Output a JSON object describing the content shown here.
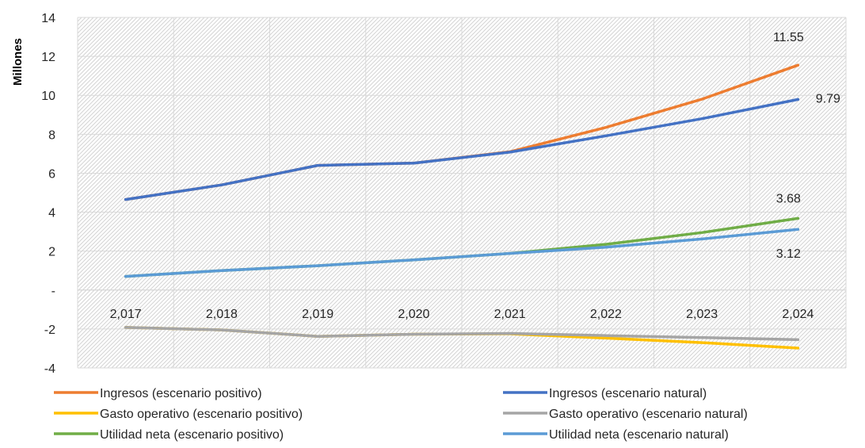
{
  "chart_data": {
    "type": "line",
    "title": "",
    "xlabel": "",
    "ylabel": "Millones",
    "ylim": [
      -4,
      14
    ],
    "yticks": [
      {
        "value": 14,
        "label": "14"
      },
      {
        "value": 12,
        "label": "12"
      },
      {
        "value": 10,
        "label": "10"
      },
      {
        "value": 8,
        "label": "8"
      },
      {
        "value": 6,
        "label": "6"
      },
      {
        "value": 4,
        "label": "4"
      },
      {
        "value": 2,
        "label": "2"
      },
      {
        "value": 0,
        "label": "-"
      },
      {
        "value": -2,
        "label": "-2"
      },
      {
        "value": -4,
        "label": "-4"
      }
    ],
    "categories": [
      "2,017",
      "2,018",
      "2,019",
      "2,020",
      "2,021",
      "2,022",
      "2,023",
      "2,024"
    ],
    "grid": true,
    "legend": "bottom",
    "series": [
      {
        "name": "Ingresos (escenario positivo)",
        "color": "#ED7D31",
        "values": [
          4.65,
          5.4,
          6.4,
          6.52,
          7.1,
          8.35,
          9.8,
          11.55
        ]
      },
      {
        "name": "Ingresos (escenario natural)",
        "color": "#4472C4",
        "values": [
          4.65,
          5.4,
          6.4,
          6.52,
          7.08,
          7.92,
          8.8,
          9.79
        ]
      },
      {
        "name": "Gasto operativo (escenario positivo)",
        "color": "#FFC000",
        "values": [
          -1.92,
          -2.05,
          -2.38,
          -2.27,
          -2.25,
          -2.47,
          -2.7,
          -2.98
        ]
      },
      {
        "name": "Gasto operativo (escenario natural)",
        "color": "#A5A5A5",
        "values": [
          -1.92,
          -2.05,
          -2.38,
          -2.27,
          -2.23,
          -2.34,
          -2.44,
          -2.55
        ]
      },
      {
        "name": "Utilidad neta (escenario positivo)",
        "color": "#70AD47",
        "values": [
          0.7,
          1.0,
          1.25,
          1.55,
          1.88,
          2.35,
          2.95,
          3.68
        ]
      },
      {
        "name": "Utilidad neta (escenario natural)",
        "color": "#5B9BD5",
        "values": [
          0.7,
          1.0,
          1.25,
          1.55,
          1.88,
          2.2,
          2.62,
          3.12
        ]
      }
    ],
    "data_labels": [
      {
        "series": 0,
        "index": 7,
        "text": "11.55"
      },
      {
        "series": 1,
        "index": 7,
        "text": "9.79"
      },
      {
        "series": 4,
        "index": 7,
        "text": "3.68"
      },
      {
        "series": 5,
        "index": 7,
        "text": "3.12"
      }
    ]
  }
}
